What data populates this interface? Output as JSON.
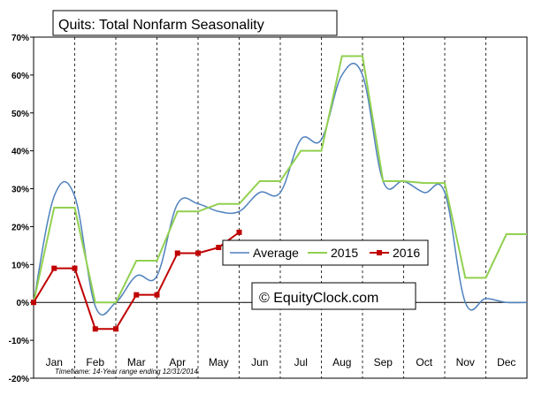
{
  "chart_data": {
    "type": "line",
    "title": "Quits: Total Nonfarm Seasonality",
    "xlabel": "",
    "ylabel": "",
    "categories": [
      "Jan",
      "Feb",
      "Mar",
      "Apr",
      "May",
      "Jun",
      "Jul",
      "Aug",
      "Sep",
      "Oct",
      "Nov",
      "Dec"
    ],
    "ylim": [
      -20,
      70
    ],
    "yticks": [
      -20,
      -10,
      0,
      10,
      20,
      30,
      40,
      50,
      60,
      70
    ],
    "ytick_labels": [
      "-20%",
      "-10%",
      "0%",
      "10%",
      "20%",
      "30%",
      "40%",
      "50%",
      "60%",
      "70%"
    ],
    "grid": "vertical dashed lines between months",
    "legend_position": "center",
    "footnote": "Timeframe: 14-Year range ending 12/31/2014",
    "watermark": "© EquityClock.com",
    "series": [
      {
        "name": "Average",
        "color": "#4f81bd",
        "style": "smooth",
        "x": [
          0,
          0.5,
          1,
          1.5,
          2,
          2.5,
          3,
          3.5,
          4,
          4.5,
          5,
          5.5,
          6,
          6.5,
          7,
          7.5,
          8,
          8.5,
          9,
          9.5,
          10,
          10.5,
          11,
          11.5,
          12
        ],
        "values": [
          0,
          28,
          28,
          -1,
          0,
          7,
          7,
          26,
          26,
          24,
          24,
          29,
          29,
          43,
          43,
          60,
          60,
          32,
          32,
          29,
          29,
          0,
          1,
          0,
          0
        ]
      },
      {
        "name": "2015",
        "color": "#92d050",
        "style": "stepped",
        "x": [
          0,
          0.5,
          1,
          1.5,
          2,
          2.5,
          3,
          3.5,
          4,
          4.5,
          5,
          5.5,
          6,
          6.5,
          7,
          7.5,
          8,
          8.5,
          9,
          9.5,
          10,
          10.5,
          11,
          11.5,
          12
        ],
        "values": [
          0,
          25,
          25,
          0,
          0,
          11,
          11,
          24,
          24,
          26,
          26,
          32,
          32,
          40,
          40,
          65,
          65,
          32,
          32,
          31.5,
          31.5,
          6.5,
          6.5,
          18,
          18
        ]
      },
      {
        "name": "2016",
        "color": "#c00000",
        "style": "markers",
        "x": [
          0,
          0.5,
          1,
          1.5,
          2,
          2.5,
          3,
          3.5,
          4,
          4.5,
          5
        ],
        "values": [
          0,
          9,
          9,
          -7,
          -7,
          2,
          2,
          13,
          13,
          14.5,
          18.5
        ]
      }
    ]
  }
}
